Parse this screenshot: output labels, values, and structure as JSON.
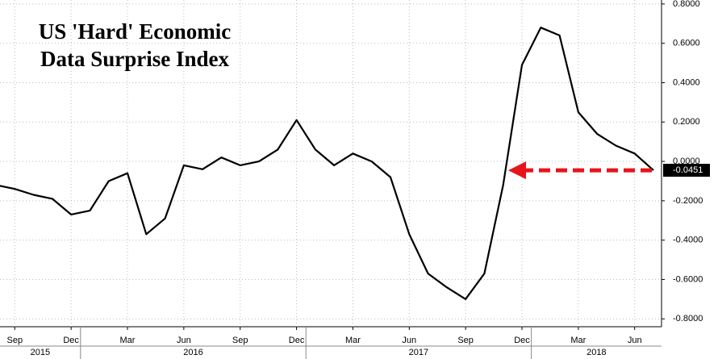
{
  "chart_data": {
    "type": "line",
    "title": "US 'Hard' Economic Data Surprise Index",
    "x": [
      "2015-08",
      "2015-09",
      "2015-10",
      "2015-11",
      "2015-12",
      "2016-01",
      "2016-02",
      "2016-03",
      "2016-04",
      "2016-05",
      "2016-06",
      "2016-07",
      "2016-08",
      "2016-09",
      "2016-10",
      "2016-11",
      "2016-12",
      "2017-01",
      "2017-02",
      "2017-03",
      "2017-04",
      "2017-05",
      "2017-06",
      "2017-07",
      "2017-08",
      "2017-09",
      "2017-10",
      "2017-11",
      "2017-12",
      "2018-01",
      "2018-02",
      "2018-03",
      "2018-04",
      "2018-05",
      "2018-06",
      "2018-07"
    ],
    "series": [
      {
        "name": "US 'Hard' Economic Data Surprise Index",
        "color": "#000000",
        "values": [
          -0.12,
          -0.14,
          -0.17,
          -0.19,
          -0.27,
          -0.25,
          -0.1,
          -0.06,
          -0.37,
          -0.29,
          -0.02,
          -0.04,
          0.02,
          -0.02,
          0.0,
          0.06,
          0.21,
          0.06,
          -0.02,
          0.04,
          0.0,
          -0.08,
          -0.37,
          -0.57,
          -0.64,
          -0.7,
          -0.57,
          -0.12,
          0.49,
          0.68,
          0.64,
          0.25,
          0.14,
          0.08,
          0.04,
          -0.0451
        ]
      }
    ],
    "last_value": {
      "value": -0.0451,
      "label": "-0.0451",
      "color": "#e8141b"
    },
    "xlim": [
      "2015-08",
      "2018-07"
    ],
    "xticks": [
      {
        "value": "2015-09",
        "label": "Sep"
      },
      {
        "value": "2015-12",
        "label": "Dec"
      },
      {
        "value": "2016-03",
        "label": "Mar"
      },
      {
        "value": "2016-06",
        "label": "Jun"
      },
      {
        "value": "2016-09",
        "label": "Sep"
      },
      {
        "value": "2016-12",
        "label": "Dec"
      },
      {
        "value": "2017-03",
        "label": "Mar"
      },
      {
        "value": "2017-06",
        "label": "Jun"
      },
      {
        "value": "2017-09",
        "label": "Sep"
      },
      {
        "value": "2017-12",
        "label": "Dec"
      },
      {
        "value": "2018-03",
        "label": "Mar"
      },
      {
        "value": "2018-06",
        "label": "Jun"
      }
    ],
    "years": [
      "2015",
      "2016",
      "2017",
      "2018"
    ],
    "ylim": [
      -0.84,
      0.82
    ],
    "yticks": [
      {
        "value": 0.8,
        "label": "0.8000"
      },
      {
        "value": 0.6,
        "label": "0.6000"
      },
      {
        "value": 0.4,
        "label": "0.4000"
      },
      {
        "value": 0.2,
        "label": "0.2000"
      },
      {
        "value": 0,
        "label": "0.0000"
      },
      {
        "value": -0.2,
        "label": "-0.2000"
      },
      {
        "value": -0.4,
        "label": "-0.4000"
      },
      {
        "value": -0.6,
        "label": "-0.6000"
      },
      {
        "value": -0.8,
        "label": "-0.8000"
      }
    ],
    "grid": true
  }
}
